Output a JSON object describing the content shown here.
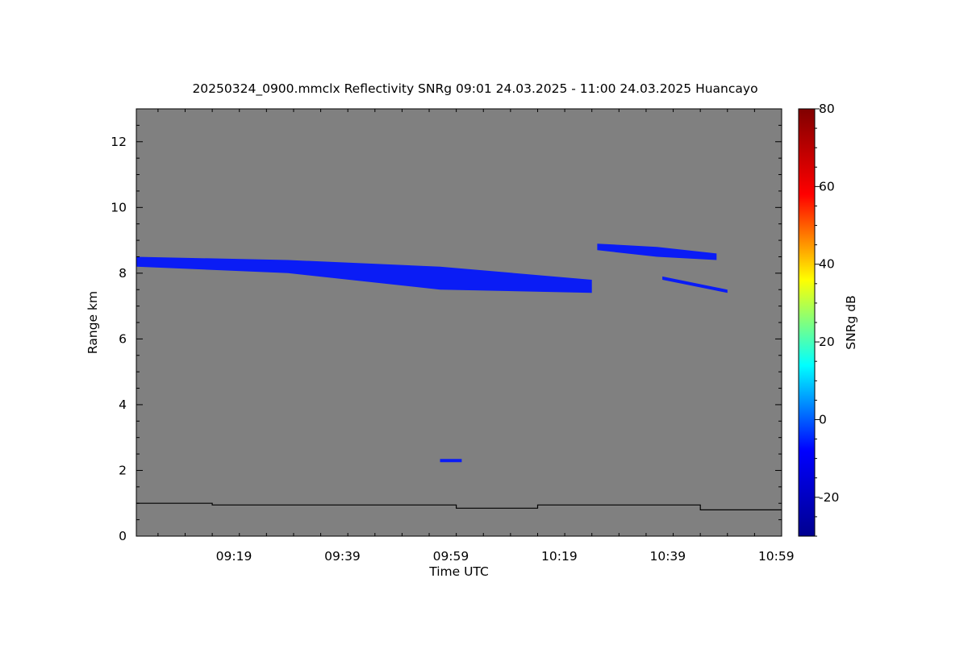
{
  "chart_data": {
    "type": "heatmap",
    "title": "20250324_0900.mmclx Reflectivity SNRg   09:01 24.03.2025 - 11:00 24.03.2025 Huancayo",
    "xlabel": "Time UTC",
    "ylabel": "Range km",
    "x_unit": "minutes UTC",
    "xlim": [
      541,
      660
    ],
    "ylim": [
      0,
      13
    ],
    "x_ticks": [
      {
        "value": 559,
        "label": "09:19"
      },
      {
        "value": 579,
        "label": "09:39"
      },
      {
        "value": 599,
        "label": "09:59"
      },
      {
        "value": 619,
        "label": "10:19"
      },
      {
        "value": 639,
        "label": "10:39"
      },
      {
        "value": 659,
        "label": "10:59"
      }
    ],
    "y_ticks": [
      0,
      2,
      4,
      6,
      8,
      10,
      12
    ],
    "colorbar": {
      "label": "SNRg dB",
      "range": [
        -30,
        80
      ],
      "ticks": [
        -20,
        0,
        20,
        40,
        60,
        80
      ],
      "colors": [
        "#00008f",
        "#0000ff",
        "#00ffff",
        "#ffff00",
        "#ff0000",
        "#800000"
      ]
    },
    "background_color": "#808080",
    "echo_color": "#0a1cf5",
    "echo_layers": [
      {
        "name": "main cloud layer",
        "t_start": 541,
        "t_end": 625,
        "top_km": [
          8.5,
          8.4,
          8.2,
          7.8
        ],
        "base_km": [
          8.2,
          8.0,
          7.5,
          7.4
        ]
      },
      {
        "name": "upper right cloud",
        "t_start": 626,
        "t_end": 648,
        "top_km": [
          8.9,
          8.8,
          8.6
        ],
        "base_km": [
          8.7,
          8.5,
          8.4
        ]
      },
      {
        "name": "thin layer right",
        "t_start": 638,
        "t_end": 650,
        "top_km": [
          7.9,
          7.5
        ],
        "base_km": [
          7.8,
          7.4
        ]
      },
      {
        "name": "low patch",
        "t_start": 597,
        "t_end": 601,
        "top_km": [
          2.35
        ],
        "base_km": [
          2.25
        ]
      }
    ],
    "low_level_boundary": [
      {
        "t_start": 541,
        "t_end": 555,
        "km": 1.0
      },
      {
        "t_start": 555,
        "t_end": 600,
        "km": 0.95
      },
      {
        "t_start": 600,
        "t_end": 615,
        "km": 0.85
      },
      {
        "t_start": 615,
        "t_end": 645,
        "km": 0.95
      },
      {
        "t_start": 645,
        "t_end": 660,
        "km": 0.8
      }
    ]
  }
}
